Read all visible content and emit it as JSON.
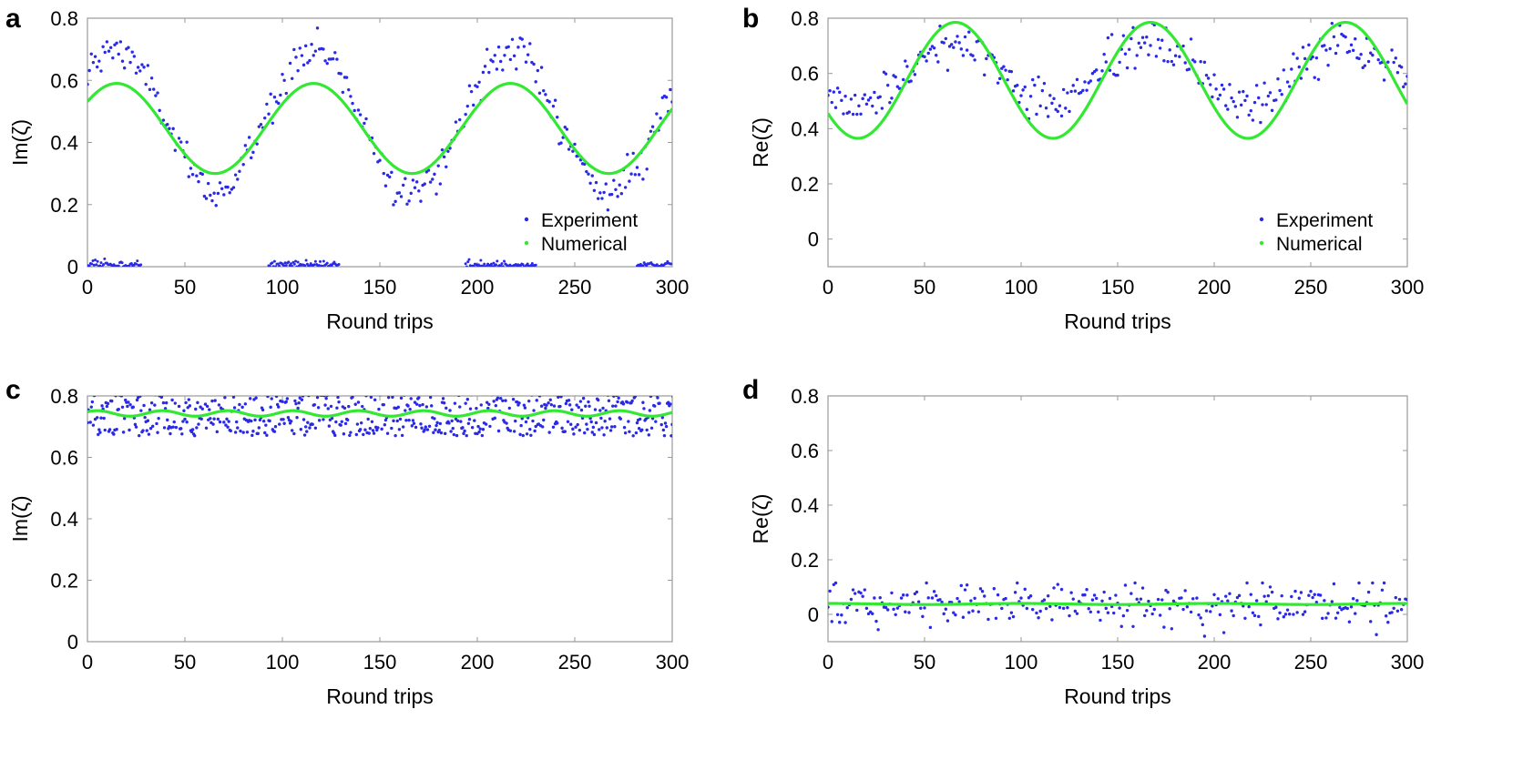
{
  "chart_data": [
    {
      "panel": "a",
      "type": "scatter",
      "xlabel": "Round trips",
      "ylabel": "Im(ζ)",
      "xlim": [
        0,
        300
      ],
      "ylim": [
        0,
        0.8
      ],
      "xticks": [
        0,
        50,
        100,
        150,
        200,
        250,
        300
      ],
      "yticks": [
        0,
        0.2,
        0.4,
        0.6,
        0.8
      ],
      "legend": {
        "position": "bottom-right",
        "entries": [
          "Experiment",
          "Numerical"
        ]
      },
      "series": [
        {
          "name": "Experiment",
          "kind": "points",
          "color": "#2a2ae6",
          "model": {
            "period": 101,
            "phase_peak": 15,
            "center": 0.47,
            "amplitude": 0.23,
            "noise": 0.03,
            "zero_cluster": {
              "centers": [
                10,
                111,
                212,
                300
              ],
              "halfwidth": 18,
              "value": 0.0,
              "noise": 0.008
            }
          }
        },
        {
          "name": "Numerical",
          "kind": "line",
          "color": "#33e833",
          "model": {
            "period": 101,
            "phase_peak": 15,
            "center": 0.445,
            "amplitude": 0.145
          }
        }
      ]
    },
    {
      "panel": "b",
      "type": "scatter",
      "xlabel": "Round trips",
      "ylabel": "Re(ζ)",
      "xlim": [
        0,
        300
      ],
      "ylim": [
        -0.1,
        0.8
      ],
      "xticks": [
        0,
        50,
        100,
        150,
        200,
        250,
        300
      ],
      "yticks": [
        0,
        0.2,
        0.4,
        0.6,
        0.8
      ],
      "legend": {
        "position": "bottom-right",
        "entries": [
          "Experiment",
          "Numerical"
        ]
      },
      "series": [
        {
          "name": "Experiment",
          "kind": "points",
          "color": "#2a2ae6",
          "model": {
            "period": 101,
            "phase_peak": 66,
            "center": 0.6,
            "amplitude": 0.11,
            "noise": 0.04
          }
        },
        {
          "name": "Numerical",
          "kind": "line",
          "color": "#33e833",
          "model": {
            "period": 101,
            "phase_peak": 66,
            "center": 0.575,
            "amplitude": 0.21
          }
        }
      ]
    },
    {
      "panel": "c",
      "type": "scatter",
      "xlabel": "Round trips",
      "ylabel": "Im(ζ)",
      "xlim": [
        0,
        300
      ],
      "ylim": [
        0,
        0.8
      ],
      "xticks": [
        0,
        50,
        100,
        150,
        200,
        250,
        300
      ],
      "yticks": [
        0,
        0.2,
        0.4,
        0.6,
        0.8
      ],
      "series": [
        {
          "name": "Experiment",
          "kind": "points",
          "color": "#2a2ae6",
          "model": {
            "period": 33,
            "phase_peak": 5,
            "center": 0.74,
            "amplitude": 0.0,
            "noise": 0.045,
            "cap": [
              0.67,
              0.81
            ]
          }
        },
        {
          "name": "Numerical",
          "kind": "line",
          "color": "#33e833",
          "model": {
            "period": 33.5,
            "phase_peak": 5,
            "center": 0.743,
            "amplitude": 0.009
          }
        }
      ]
    },
    {
      "panel": "d",
      "type": "scatter",
      "xlabel": "Round trips",
      "ylabel": "Re(ζ)",
      "xlim": [
        0,
        300
      ],
      "ylim": [
        -0.1,
        0.8
      ],
      "xticks": [
        0,
        50,
        100,
        150,
        200,
        250,
        300
      ],
      "yticks": [
        0,
        0.2,
        0.4,
        0.6,
        0.8
      ],
      "series": [
        {
          "name": "Experiment",
          "kind": "points",
          "color": "#2a2ae6",
          "model": {
            "period": 100,
            "phase_peak": 0,
            "center": 0.035,
            "amplitude": 0.0,
            "noise": 0.04,
            "cap": [
              -0.08,
              0.115
            ]
          }
        },
        {
          "name": "Numerical",
          "kind": "line",
          "color": "#33e833",
          "model": {
            "period": 100,
            "phase_peak": 0,
            "center": 0.038,
            "amplitude": 0.002
          }
        }
      ]
    }
  ]
}
